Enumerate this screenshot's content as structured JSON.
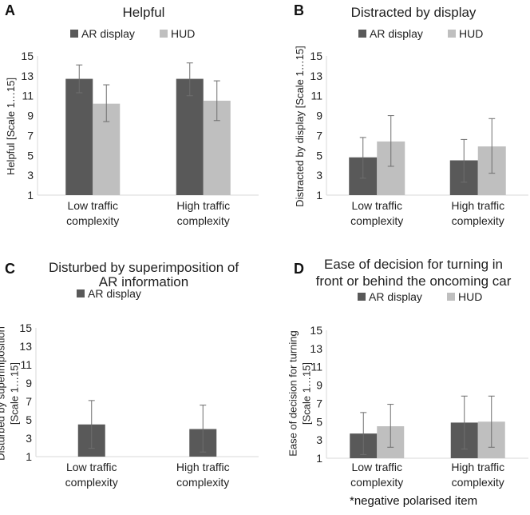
{
  "colors": {
    "ar": "#595959",
    "hud": "#bfbfbf",
    "axis": "#d9d9d9",
    "err": "#6e6e6e",
    "text": "#222222"
  },
  "chart_data": [
    {
      "panel": "A",
      "type": "bar",
      "title": [
        "Helpful"
      ],
      "ylabel": [
        "Helpful [Scale 1…15]"
      ],
      "categories": [
        [
          "Low traffic",
          "complexity"
        ],
        [
          "High traffic",
          "complexity"
        ]
      ],
      "yticks": [
        1,
        3,
        5,
        7,
        9,
        11,
        13,
        15
      ],
      "ylim": [
        1,
        15
      ],
      "series": [
        {
          "name": "AR display",
          "color_key": "ar",
          "values": [
            12.7,
            12.7
          ],
          "err_low": [
            11.3,
            11.0
          ],
          "err_high": [
            14.1,
            14.3
          ]
        },
        {
          "name": "HUD",
          "color_key": "hud",
          "values": [
            10.2,
            10.5
          ],
          "err_low": [
            8.4,
            8.5
          ],
          "err_high": [
            12.1,
            12.5
          ]
        }
      ]
    },
    {
      "panel": "B",
      "type": "bar",
      "title": [
        "Distracted by display"
      ],
      "ylabel": [
        "Distracted by display [Scale 1…15]"
      ],
      "categories": [
        [
          "Low traffic",
          "complexity"
        ],
        [
          "High traffic",
          "complexity"
        ]
      ],
      "yticks": [
        1,
        3,
        5,
        7,
        9,
        11,
        13,
        15
      ],
      "ylim": [
        1,
        15
      ],
      "series": [
        {
          "name": "AR display",
          "color_key": "ar",
          "values": [
            4.8,
            4.5
          ],
          "err_low": [
            2.7,
            2.3
          ],
          "err_high": [
            6.8,
            6.6
          ]
        },
        {
          "name": "HUD",
          "color_key": "hud",
          "values": [
            6.4,
            5.9
          ],
          "err_low": [
            3.9,
            3.2
          ],
          "err_high": [
            9.0,
            8.7
          ]
        }
      ]
    },
    {
      "panel": "C",
      "type": "bar",
      "title": [
        "Disturbed by superimposition of",
        "AR information"
      ],
      "ylabel": [
        "Disturbed by superimposition",
        "[Scale 1…15]"
      ],
      "categories": [
        [
          "Low traffic",
          "complexity"
        ],
        [
          "High traffic",
          "complexity"
        ]
      ],
      "yticks": [
        1,
        3,
        5,
        7,
        9,
        11,
        13,
        15
      ],
      "ylim": [
        1,
        15
      ],
      "series": [
        {
          "name": "AR display",
          "color_key": "ar",
          "values": [
            4.5,
            4.0
          ],
          "err_low": [
            1.9,
            1.5
          ],
          "err_high": [
            7.1,
            6.6
          ]
        }
      ]
    },
    {
      "panel": "D",
      "type": "bar",
      "title": [
        "Ease of decision for turning in",
        "front or behind the oncoming car"
      ],
      "ylabel": [
        "Ease of decision for turning",
        "[Scale 1…15]"
      ],
      "categories": [
        [
          "Low traffic",
          "complexity"
        ],
        [
          "High traffic",
          "complexity"
        ]
      ],
      "yticks": [
        1,
        3,
        5,
        7,
        9,
        11,
        13,
        15
      ],
      "ylim": [
        1,
        15
      ],
      "series": [
        {
          "name": "AR display",
          "color_key": "ar",
          "values": [
            3.7,
            4.9
          ],
          "err_low": [
            1.4,
            2.0
          ],
          "err_high": [
            6.0,
            7.8
          ]
        },
        {
          "name": "HUD",
          "color_key": "hud",
          "values": [
            4.5,
            5.0
          ],
          "err_low": [
            2.2,
            2.2
          ],
          "err_high": [
            6.9,
            7.8
          ]
        }
      ]
    }
  ],
  "footnote": "*negative polarised item"
}
